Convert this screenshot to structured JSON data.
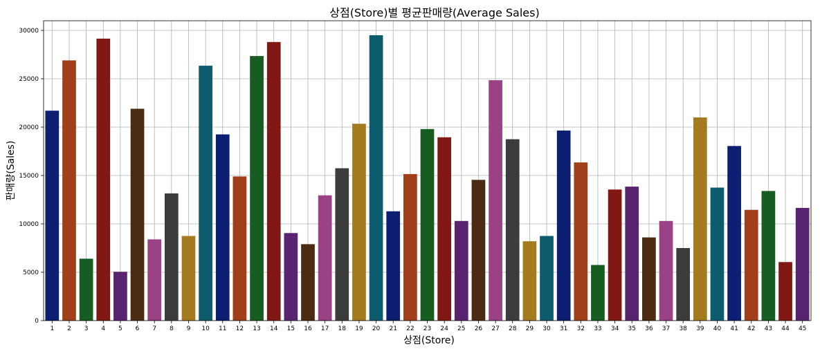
{
  "chart_data": {
    "type": "bar",
    "title": "상점(Store)별 평균판매량(Average Sales)",
    "xlabel": "상점(Store)",
    "ylabel": "판매량(Sales)",
    "ylim": [
      0,
      31000
    ],
    "yticks": [
      0,
      5000,
      10000,
      15000,
      20000,
      25000,
      30000
    ],
    "grid": true,
    "categories": [
      "1",
      "2",
      "3",
      "4",
      "5",
      "6",
      "7",
      "8",
      "9",
      "10",
      "11",
      "12",
      "13",
      "14",
      "15",
      "16",
      "17",
      "18",
      "19",
      "20",
      "21",
      "22",
      "23",
      "24",
      "25",
      "26",
      "27",
      "28",
      "29",
      "30",
      "31",
      "32",
      "33",
      "34",
      "35",
      "36",
      "37",
      "38",
      "39",
      "40",
      "41",
      "42",
      "43",
      "44",
      "45"
    ],
    "values": [
      21700,
      26900,
      6400,
      29150,
      5050,
      21900,
      8400,
      13150,
      8750,
      26350,
      19250,
      14900,
      27350,
      28800,
      9050,
      7900,
      12950,
      15750,
      20350,
      29500,
      11300,
      15150,
      19800,
      18950,
      10300,
      14550,
      24850,
      18750,
      8200,
      8750,
      19650,
      16350,
      5750,
      13550,
      13850,
      8600,
      10300,
      7500,
      21000,
      13750,
      18050,
      11450,
      13400,
      6050,
      11650
    ],
    "colors": [
      "#0d1f73",
      "#a13f1b",
      "#175c20",
      "#821813",
      "#582470",
      "#4b2c13",
      "#9b4287",
      "#3c3c3c",
      "#a57b1f",
      "#0d5c6d"
    ]
  }
}
